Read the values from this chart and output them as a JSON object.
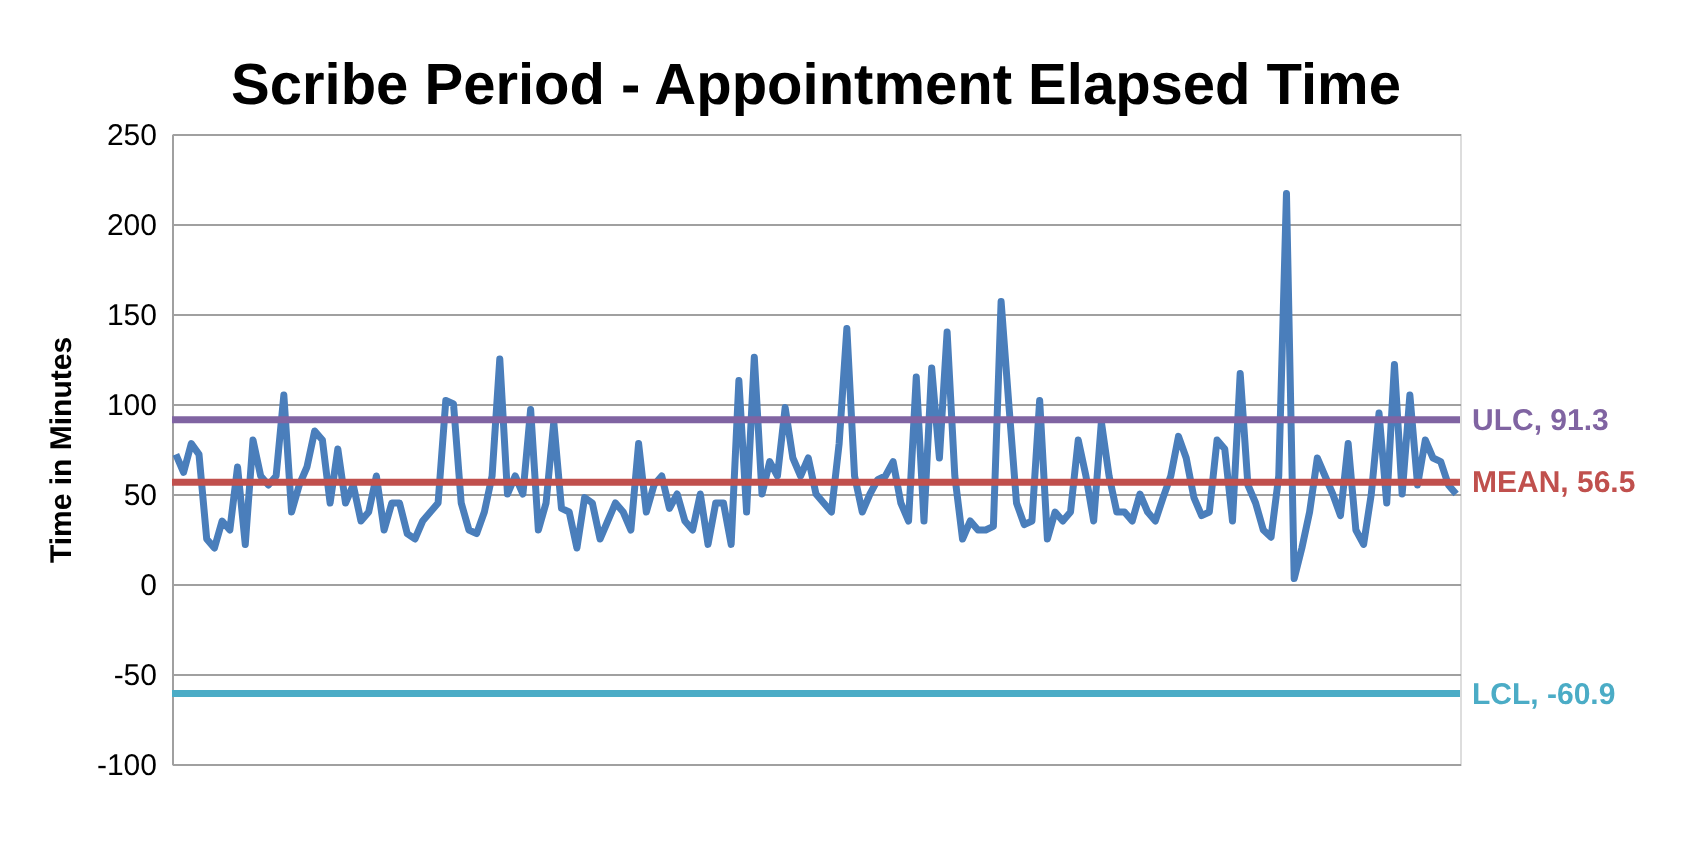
{
  "chart_data": {
    "type": "line",
    "title": "Scribe Period - Appointment Elapsed Time",
    "ylabel": "Time in Minutes",
    "categories": [
      null,
      null,
      null,
      null,
      null,
      null,
      null,
      null,
      null,
      null,
      null,
      null,
      null,
      null,
      null,
      null,
      null,
      null,
      null,
      null,
      null,
      null,
      null,
      null,
      null,
      null,
      null,
      null,
      null,
      null,
      null,
      null,
      null,
      null,
      null,
      null,
      null,
      null,
      null,
      null,
      null,
      null,
      null,
      null,
      null,
      null,
      null,
      null,
      null,
      null,
      null,
      null,
      null,
      null,
      null,
      null,
      null,
      null,
      null,
      null,
      null,
      null,
      null,
      null,
      null,
      null,
      null,
      null,
      null,
      null,
      null,
      null,
      null,
      null,
      null,
      null,
      null,
      null,
      null,
      null,
      null,
      null,
      null,
      null,
      null,
      null,
      null,
      null,
      null,
      null,
      null,
      null,
      null,
      null,
      null,
      null,
      null,
      null,
      null,
      null,
      null,
      null,
      null,
      null,
      null,
      null,
      null,
      null,
      null,
      null,
      null,
      null,
      null,
      null,
      null,
      null,
      null,
      null,
      null,
      null,
      null,
      null,
      null,
      null,
      null,
      null,
      null,
      null,
      null,
      null,
      null,
      null,
      null,
      null,
      null,
      null,
      null,
      null,
      null,
      null,
      null,
      null,
      null,
      null,
      null,
      null,
      null,
      null,
      null,
      null,
      null,
      null,
      null,
      null,
      null,
      null,
      null,
      null,
      null,
      null,
      null,
      null,
      null,
      null,
      null,
      null,
      null
    ],
    "series": [
      {
        "color": "#4a7ebb",
        "values": [
          72,
          62,
          78,
          72,
          25,
          20,
          35,
          30,
          65,
          22,
          80,
          60,
          55,
          60,
          105,
          40,
          55,
          65,
          85,
          80,
          45,
          75,
          45,
          55,
          35,
          40,
          60,
          30,
          45,
          45,
          28,
          25,
          35,
          40,
          45,
          102,
          100,
          45,
          30,
          28,
          40,
          60,
          125,
          50,
          60,
          50,
          97,
          30,
          45,
          90,
          42,
          40,
          20,
          48,
          45,
          25,
          35,
          45,
          40,
          30,
          78,
          40,
          55,
          60,
          42,
          50,
          35,
          30,
          50,
          22,
          45,
          45,
          22,
          113,
          40,
          126,
          50,
          68,
          60,
          98,
          70,
          60,
          70,
          50,
          45,
          40,
          78,
          142,
          60,
          40,
          50,
          58,
          60,
          68,
          45,
          35,
          115,
          35,
          120,
          70,
          140,
          60,
          25,
          35,
          30,
          30,
          32,
          157,
          100,
          45,
          33,
          35,
          102,
          25,
          40,
          35,
          40,
          80,
          60,
          35,
          90,
          60,
          40,
          40,
          35,
          50,
          40,
          35,
          48,
          60,
          82,
          70,
          48,
          38,
          40,
          80,
          75,
          35,
          117,
          55,
          45,
          30,
          26,
          60,
          217,
          3,
          20,
          40,
          70,
          60,
          50,
          38,
          78,
          30,
          22,
          50,
          95,
          45,
          122,
          50,
          105,
          55,
          80,
          70,
          68,
          55,
          50
        ]
      }
    ],
    "ylim": [
      -100,
      250
    ],
    "yticks": [
      -100,
      -50,
      0,
      50,
      100,
      150,
      200,
      250
    ],
    "grid": "y",
    "tick_labels": "y",
    "line_style": "solid",
    "marker": "none",
    "ref_lines": [
      {
        "axis": "y",
        "value": 91.3,
        "label": "ULC, 91.3",
        "color": "#8064a2"
      },
      {
        "axis": "y",
        "value": 56.5,
        "label": "MEAN, 56.5",
        "color": "#c0504d"
      },
      {
        "axis": "y",
        "value": -60.9,
        "label": "LCL, -60.9",
        "color": "#4bacc6"
      }
    ]
  }
}
